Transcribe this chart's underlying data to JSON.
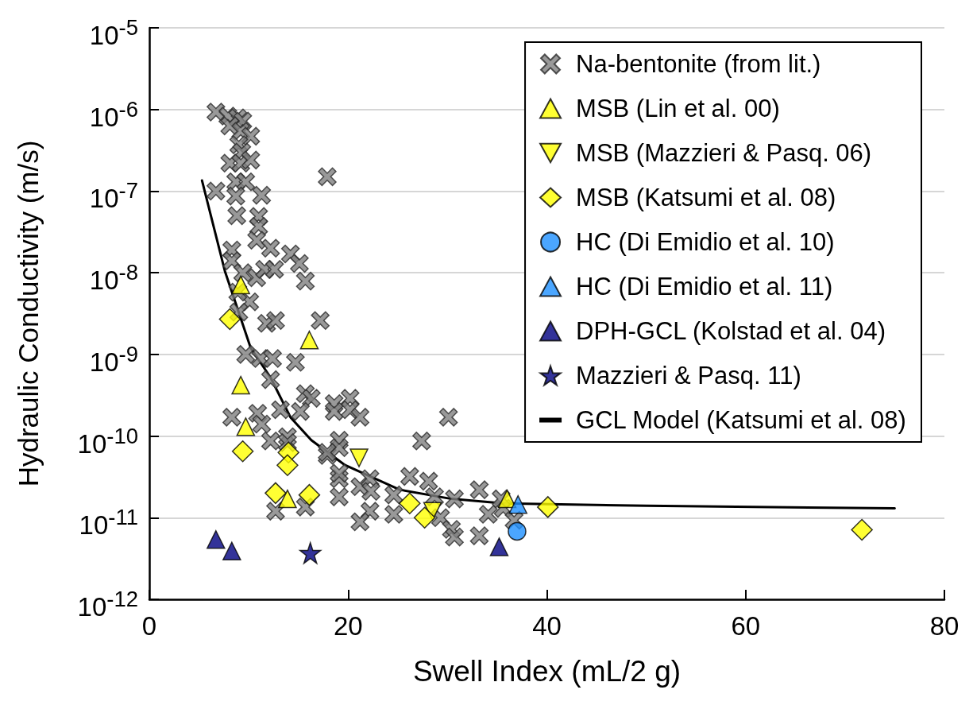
{
  "chart_data": {
    "type": "scatter",
    "xlabel": "Swell Index (mL/2 g)",
    "ylabel": "Hydraulic Conductivity (m/s)",
    "log": "y",
    "grid": "y",
    "legend": "top right",
    "xlim": [
      0,
      80
    ],
    "xticks": [
      0,
      20,
      40,
      60,
      80
    ],
    "ylim": [
      1e-12,
      1e-05
    ],
    "yticks": [
      {
        "value": 1e-12,
        "label": "10$^{-12}$"
      },
      {
        "value": 1e-11,
        "label": "10$^{-11}$"
      },
      {
        "value": 1e-10,
        "label": "10$^{-10}$"
      },
      {
        "value": 1e-09,
        "label": "10$^{-9}$"
      },
      {
        "value": 1e-08,
        "label": "10$^{-8}$"
      },
      {
        "value": 1e-07,
        "label": "10$^{-7}$"
      },
      {
        "value": 1e-06,
        "label": "10$^{-6}$"
      },
      {
        "value": 1e-05,
        "label": "10$^{-5}$"
      }
    ],
    "series": [
      {
        "name": "Na-bentonite (from lit.)",
        "color": "#808080",
        "marker": "cross",
        "x": [
          6.7,
          7.9,
          8.9,
          9.4,
          8.1,
          9.2,
          10.2,
          9.0,
          9.3,
          8.1,
          9.2,
          10.2,
          8.7,
          9.7,
          6.7,
          8.7,
          11.3,
          8.8,
          11.0,
          11.0,
          10.8,
          12.2,
          14.2,
          8.3,
          8.3,
          9.4,
          10.8,
          11.6,
          12.6,
          15.1,
          15.7,
          10.1,
          8.9,
          9.0,
          11.8,
          12.7,
          17.2,
          9.7,
          11.2,
          12.4,
          14.7,
          12.2,
          15.7,
          16.3,
          15.2,
          13.2,
          18.6,
          18.6,
          8.3,
          10.9,
          11.3,
          12.2,
          13.9,
          13.9,
          17.9,
          19.1,
          19.1,
          19.1,
          12.7,
          15.7,
          20.2,
          20.2,
          21.2,
          30.1,
          27.4,
          19.1,
          17.9,
          19.1,
          21.2,
          22.2,
          22.3,
          22.2,
          21.2,
          26.2,
          24.6,
          28.1,
          28.7,
          30.7,
          33.2,
          24.6,
          34.1,
          35.6,
          36.7,
          29.3,
          30.4,
          30.7,
          33.2,
          35.4,
          17.9
        ],
        "values": [
          9.3e-07,
          8.3e-07,
          7.9e-07,
          7.2e-07,
          6.3e-07,
          5.4e-07,
          4.7e-07,
          3.7e-07,
          3e-07,
          2.2e-07,
          2.2e-07,
          2.4e-07,
          1.3e-07,
          1.3e-07,
          1e-07,
          8.7e-08,
          8.9e-08,
          5e-08,
          4.9e-08,
          3.7e-08,
          2.5e-08,
          2e-08,
          1.7e-08,
          1.9e-08,
          1.4e-08,
          1e-08,
          8.7e-09,
          1.1e-08,
          1.1e-08,
          1.3e-08,
          7.9e-09,
          4.4e-09,
          5.8e-09,
          3.3e-09,
          2.4e-09,
          2.6e-09,
          2.6e-09,
          1e-09,
          8.9e-10,
          8.9e-10,
          8e-10,
          4.9e-10,
          3.3e-10,
          2.9e-10,
          2e-10,
          2.1e-10,
          2.5e-10,
          2e-10,
          1.7e-10,
          1.9e-10,
          1.4e-10,
          8.7e-11,
          9.8e-11,
          8.3e-11,
          5.8e-11,
          8.9e-11,
          3e-11,
          1.8e-11,
          1.2e-11,
          1.35e-11,
          2.9e-10,
          2.1e-10,
          1.7e-10,
          1.7e-10,
          8.7e-11,
          7.2e-11,
          6.3e-11,
          3.5e-11,
          2.4e-11,
          3e-11,
          2.1e-11,
          1.2e-11,
          8.9e-12,
          3.2e-11,
          1.9e-11,
          2.8e-11,
          1.8e-11,
          1.7e-11,
          2.2e-11,
          1.1e-11,
          1.1e-11,
          1.3e-11,
          9.3e-12,
          1e-11,
          7.2e-12,
          5.8e-12,
          6e-12,
          1.7e-11,
          1.5e-07
        ]
      },
      {
        "name": "MSB (Lin et al. 00)",
        "color": "#ffff00",
        "marker": "triangle",
        "x": [
          9.2,
          9.2,
          9.7,
          16.1,
          13.9,
          36.0
        ],
        "values": [
          7.1e-09,
          4.2e-10,
          1.3e-10,
          1.5e-09,
          1.7e-11,
          1.7e-11
        ]
      },
      {
        "name": "MSB (Mazzieri & Pasq. 06)",
        "color": "#ffff00",
        "marker": "triangle-down",
        "x": [
          21.1,
          28.5
        ],
        "values": [
          5.4e-11,
          1.2e-11
        ]
      },
      {
        "name": "MSB (Katsumi et al. 08)",
        "color": "#ffff00",
        "marker": "diamond",
        "x": [
          8.1,
          9.4,
          14.0,
          13.9,
          12.7,
          16.1,
          26.2,
          27.7,
          40.1,
          71.7
        ],
        "values": [
          2.7e-09,
          6.5e-11,
          6.3e-11,
          4.4e-11,
          2e-11,
          1.9e-11,
          1.5e-11,
          1e-11,
          1.35e-11,
          7.1e-12
        ]
      },
      {
        "name": "HC (Di Emidio et al. 10)",
        "color": "#1e90ff",
        "marker": "circle",
        "x": [
          37.0
        ],
        "values": [
          6.8e-12
        ]
      },
      {
        "name": "HC (Di Emidio et al. 11)",
        "color": "#1e90ff",
        "marker": "triangle",
        "x": [
          37.1
        ],
        "values": [
          1.45e-11
        ]
      },
      {
        "name": "DPH-GCL (Kolstad et al. 04)",
        "color": "#000080",
        "marker": "triangle",
        "x": [
          6.7,
          8.3,
          35.2
        ],
        "values": [
          5.4e-12,
          3.9e-12,
          4.4e-12
        ]
      },
      {
        "name": "Mazzieri & Pasq. 11)",
        "color": "#000080",
        "marker": "star",
        "x": [
          16.2
        ],
        "values": [
          3.7e-12
        ]
      },
      {
        "name": "GCL Model (Katsumi et al. 08)",
        "color": "#000000",
        "type": "line",
        "marker": "none",
        "line_style": "solid",
        "x": [
          5.3,
          7.6,
          10.2,
          12.2,
          14.2,
          16.3,
          19.7,
          25.2,
          30.4,
          35.6,
          50,
          75
        ],
        "values": [
          1.35e-07,
          1.05e-08,
          1.2e-09,
          5.2e-10,
          1.7e-10,
          8.9e-11,
          4.4e-11,
          2.2e-11,
          1.7e-11,
          1.5e-11,
          1.4e-11,
          1.3e-11
        ]
      }
    ]
  }
}
